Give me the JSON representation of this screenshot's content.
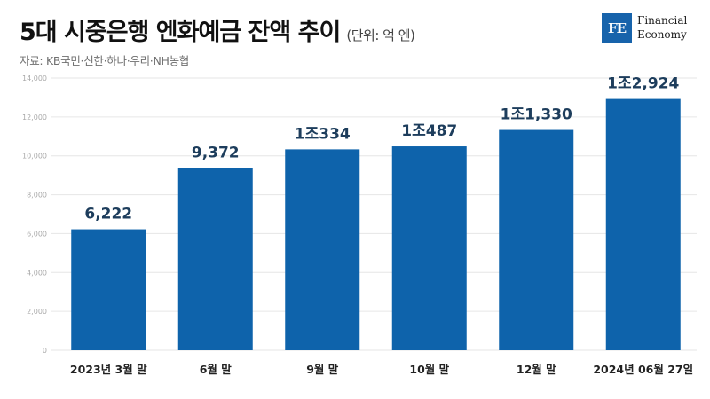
{
  "header": {
    "title": "5대 시중은행 엔화예금 잔액 추이",
    "unit": "(단위: 억 엔)",
    "source": "자료: KB국민·신한·하나·우리·NH농협"
  },
  "logo": {
    "mark": "FE",
    "line1": "Financial",
    "line2": "Economy",
    "color": "#1763ab"
  },
  "chart_data": {
    "type": "bar",
    "categories": [
      "2023년 3월 말",
      "6월 말",
      "9월 말",
      "10월 말",
      "12월 말",
      "2024년 06월 27일"
    ],
    "values": [
      6222,
      9372,
      10334,
      10487,
      11330,
      12924
    ],
    "data_labels": [
      "6,222",
      "9,372",
      "1조334",
      "1조487",
      "1조1,330",
      "1조2,924"
    ],
    "ylim": [
      0,
      14000
    ],
    "yticks": [
      0,
      2000,
      4000,
      6000,
      8000,
      10000,
      12000,
      14000
    ],
    "ytick_labels": [
      "0",
      "2,000",
      "4,000",
      "6,000",
      "8,000",
      "10,000",
      "12,000",
      "14,000"
    ],
    "grid": true,
    "bar_color": "#0e63ab"
  }
}
